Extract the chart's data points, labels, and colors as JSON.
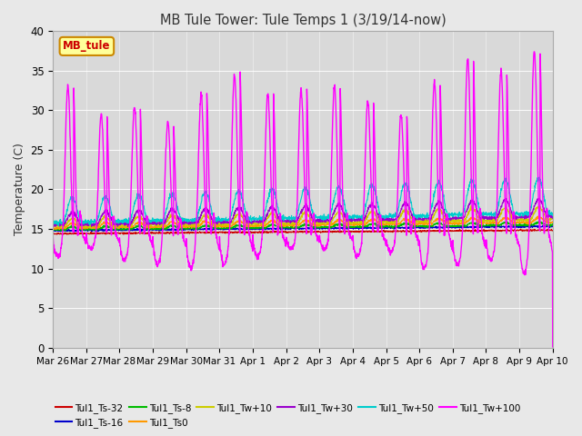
{
  "title": "MB Tule Tower: Tule Temps 1 (3/19/14-now)",
  "ylabel": "Temperature (C)",
  "ylim": [
    0,
    40
  ],
  "yticks": [
    0,
    5,
    10,
    15,
    20,
    25,
    30,
    35,
    40
  ],
  "xtick_labels": [
    "Mar 26",
    "Mar 27",
    "Mar 28",
    "Mar 29",
    "Mar 30",
    "Mar 31",
    "Apr 1",
    "Apr 2",
    "Apr 3",
    "Apr 4",
    "Apr 5",
    "Apr 6",
    "Apr 7",
    "Apr 8",
    "Apr 9",
    "Apr 10"
  ],
  "n_days": 15,
  "bg_color": "#e8e8e8",
  "plot_bg": "#d9d9d9",
  "grid_color": "#ffffff",
  "series_colors": {
    "Ts-32": "#cc0000",
    "Ts-16": "#0000cc",
    "Ts-8": "#00bb00",
    "Ts0": "#ff9900",
    "Tw+10": "#cccc00",
    "Tw+30": "#9900cc",
    "Tw+50": "#00cccc",
    "Tw+100": "#ff00ff"
  },
  "legend_labels": [
    "Tul1_Ts-32",
    "Tul1_Ts-16",
    "Tul1_Ts-8",
    "Tul1_Ts0",
    "Tul1_Tw+10",
    "Tul1_Tw+30",
    "Tul1_Tw+50",
    "Tul1_Tw+100"
  ],
  "legend_colors": [
    "#cc0000",
    "#0000cc",
    "#00bb00",
    "#ff9900",
    "#cccc00",
    "#9900cc",
    "#00cccc",
    "#ff00ff"
  ],
  "legend_box_text": "MB_tule",
  "legend_box_bg": "#ffff99",
  "legend_box_edge": "#cc8800",
  "legend_box_text_color": "#cc0000",
  "spike_peaks": [
    33,
    29.5,
    30.5,
    28.5,
    32,
    34.5,
    32,
    32.5,
    33,
    31.2,
    29.5,
    33.5,
    36.5,
    35,
    37.5,
    38,
    37,
    39
  ],
  "spike_dips": [
    11.5,
    12.5,
    11,
    10.5,
    10,
    10.5,
    11.5,
    12.5,
    12.5,
    11.5,
    12,
    10,
    10.5,
    11,
    9.5,
    10.5,
    11,
    12
  ]
}
